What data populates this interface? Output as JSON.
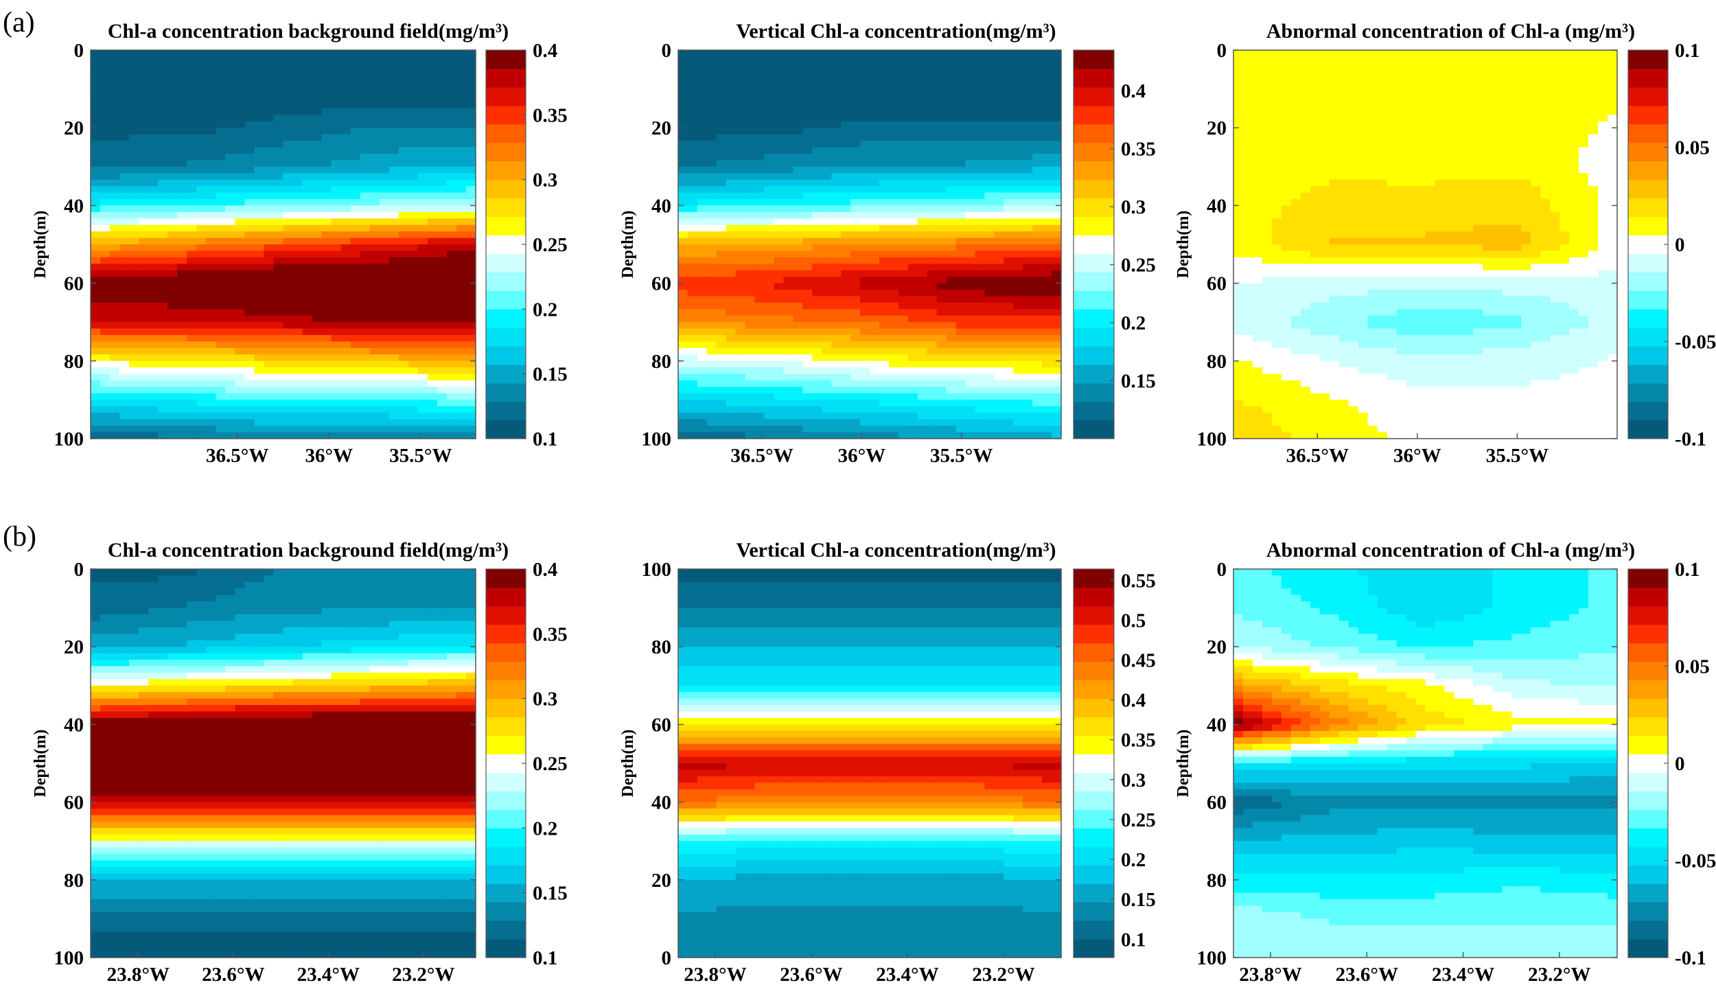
{
  "panel_labels": [
    "(a)",
    "(b)"
  ],
  "colormap": [
    "#055a7a",
    "#056e90",
    "#0587aa",
    "#05a5c8",
    "#00c8e8",
    "#00e0f5",
    "#00f5ff",
    "#60ffff",
    "#a0ffff",
    "#d0ffff",
    "#ffffff",
    "#ffff00",
    "#ffe000",
    "#ffc000",
    "#ffa000",
    "#ff8000",
    "#ff6000",
    "#ff3000",
    "#e01000",
    "#c00000",
    "#800000"
  ],
  "chart_data": [
    {
      "type": "heatmap",
      "title": "Chl-a concentration background field(mg/m³)",
      "ylabel": "Depth(m)",
      "row": "a",
      "xlim": [
        37.3,
        35.2
      ],
      "xticks": [
        36.5,
        36,
        35.5
      ],
      "xtick_labels": [
        "36.5°W",
        "36°W",
        "35.5°W"
      ],
      "ylim": [
        0,
        100
      ],
      "y_reversed": true,
      "yticks": [
        0,
        20,
        40,
        60,
        80,
        100
      ],
      "ytick_labels": [
        "0",
        "20",
        "40",
        "60",
        "80",
        "100"
      ],
      "clim": [
        0.1,
        0.4
      ],
      "cticks": [
        0.1,
        0.15,
        0.2,
        0.25,
        0.3,
        0.35,
        0.4
      ],
      "ctick_labels": [
        "0.1",
        "0.15",
        "0.2",
        "0.25",
        "0.3",
        "0.35",
        "0.4"
      ],
      "depths": [
        0,
        10,
        20,
        30,
        40,
        50,
        60,
        70,
        80,
        90,
        100
      ],
      "z": [
        [
          0.1,
          0.1,
          0.1,
          0.1,
          0.1
        ],
        [
          0.1,
          0.1,
          0.1,
          0.1,
          0.1
        ],
        [
          0.11,
          0.11,
          0.12,
          0.13,
          0.13
        ],
        [
          0.125,
          0.13,
          0.14,
          0.15,
          0.16
        ],
        [
          0.19,
          0.2,
          0.21,
          0.22,
          0.23
        ],
        [
          0.3,
          0.32,
          0.34,
          0.36,
          0.38
        ],
        [
          0.4,
          0.41,
          0.42,
          0.42,
          0.42
        ],
        [
          0.37,
          0.37,
          0.38,
          0.39,
          0.39
        ],
        [
          0.26,
          0.27,
          0.28,
          0.29,
          0.3
        ],
        [
          0.18,
          0.19,
          0.2,
          0.2,
          0.21
        ],
        [
          0.12,
          0.125,
          0.13,
          0.13,
          0.135
        ]
      ]
    },
    {
      "type": "heatmap",
      "title": "Vertical Chl-a concentration(mg/m³)",
      "ylabel": "Depth(m)",
      "row": "a",
      "xlim": [
        36.92,
        35.0
      ],
      "xticks": [
        36.5,
        36,
        35.5
      ],
      "xtick_labels": [
        "36.5°W",
        "36°W",
        "35.5°W"
      ],
      "ylim": [
        0,
        100
      ],
      "y_reversed": true,
      "yticks": [
        0,
        20,
        40,
        60,
        80,
        100
      ],
      "ytick_labels": [
        "0",
        "20",
        "40",
        "60",
        "80",
        "100"
      ],
      "clim": [
        0.1,
        0.435
      ],
      "cticks": [
        0.15,
        0.2,
        0.25,
        0.3,
        0.35,
        0.4
      ],
      "ctick_labels": [
        "0.15",
        "0.2",
        "0.25",
        "0.3",
        "0.35",
        "0.4"
      ],
      "depths": [
        0,
        10,
        20,
        30,
        40,
        50,
        60,
        70,
        80,
        90,
        100
      ],
      "z": [
        [
          0.1,
          0.1,
          0.1,
          0.1,
          0.1
        ],
        [
          0.1,
          0.1,
          0.1,
          0.1,
          0.1
        ],
        [
          0.11,
          0.11,
          0.12,
          0.12,
          0.12
        ],
        [
          0.13,
          0.14,
          0.15,
          0.15,
          0.16
        ],
        [
          0.2,
          0.21,
          0.22,
          0.23,
          0.24
        ],
        [
          0.32,
          0.33,
          0.34,
          0.35,
          0.36
        ],
        [
          0.38,
          0.39,
          0.41,
          0.43,
          0.44
        ],
        [
          0.34,
          0.35,
          0.36,
          0.38,
          0.38
        ],
        [
          0.25,
          0.26,
          0.28,
          0.29,
          0.3
        ],
        [
          0.18,
          0.19,
          0.2,
          0.21,
          0.22
        ],
        [
          0.12,
          0.13,
          0.14,
          0.15,
          0.16
        ]
      ]
    },
    {
      "type": "heatmap",
      "title": "Abnormal concentration of Chl-a (mg/m³)",
      "ylabel": "Depth(m)",
      "row": "a",
      "xlim": [
        36.92,
        35.0
      ],
      "xticks": [
        36.5,
        36,
        35.5
      ],
      "xtick_labels": [
        "36.5°W",
        "36°W",
        "35.5°W"
      ],
      "ylim": [
        0,
        100
      ],
      "y_reversed": true,
      "yticks": [
        0,
        20,
        40,
        60,
        80,
        100
      ],
      "ytick_labels": [
        "0",
        "20",
        "40",
        "60",
        "80",
        "100"
      ],
      "clim": [
        -0.1,
        0.1
      ],
      "cticks": [
        -0.1,
        -0.05,
        0,
        0.05,
        0.1
      ],
      "ctick_labels": [
        "-0.1",
        "-0.05",
        "0",
        "0.05",
        "0.1"
      ],
      "depths": [
        0,
        10,
        20,
        30,
        40,
        50,
        60,
        70,
        80,
        90,
        100
      ],
      "z": [
        [
          0.01,
          0.008,
          0.01,
          0.008,
          0.008
        ],
        [
          0.01,
          0.008,
          0.008,
          0.008,
          0.006
        ],
        [
          0.008,
          0.01,
          0.006,
          0.008,
          0.004
        ],
        [
          0.005,
          0.012,
          0.01,
          0.012,
          0.0
        ],
        [
          0.01,
          0.018,
          0.02,
          0.02,
          0.002
        ],
        [
          0.008,
          0.025,
          0.025,
          0.028,
          0.0
        ],
        [
          -0.005,
          -0.01,
          -0.012,
          -0.01,
          -0.008
        ],
        [
          -0.008,
          -0.02,
          -0.032,
          -0.025,
          -0.01
        ],
        [
          0.006,
          -0.005,
          -0.012,
          -0.008,
          -0.004
        ],
        [
          0.015,
          0.006,
          -0.002,
          -0.003,
          -0.002
        ],
        [
          0.022,
          0.01,
          0.002,
          0.0,
          -0.002
        ]
      ]
    },
    {
      "type": "heatmap",
      "title": "Chl-a concentration background field(mg/m³)",
      "ylabel": "Depth(m)",
      "row": "b",
      "xlim": [
        23.9,
        23.09
      ],
      "xticks": [
        23.8,
        23.6,
        23.4,
        23.2
      ],
      "xtick_labels": [
        "23.8°W",
        "23.6°W",
        "23.4°W",
        "23.2°W"
      ],
      "ylim": [
        0,
        100
      ],
      "y_reversed": true,
      "yticks": [
        0,
        20,
        40,
        60,
        80,
        100
      ],
      "ytick_labels": [
        "0",
        "20",
        "40",
        "60",
        "80",
        "100"
      ],
      "clim": [
        0.1,
        0.4
      ],
      "cticks": [
        0.1,
        0.15,
        0.2,
        0.25,
        0.3,
        0.35,
        0.4
      ],
      "ctick_labels": [
        "0.1",
        "0.15",
        "0.2",
        "0.25",
        "0.3",
        "0.35",
        "0.4"
      ],
      "depths": [
        0,
        10,
        20,
        30,
        40,
        50,
        60,
        70,
        80,
        90,
        100
      ],
      "z": [
        [
          0.11,
          0.11,
          0.13,
          0.14,
          0.14
        ],
        [
          0.12,
          0.13,
          0.14,
          0.14,
          0.14
        ],
        [
          0.15,
          0.16,
          0.17,
          0.18,
          0.19
        ],
        [
          0.26,
          0.27,
          0.28,
          0.29,
          0.3
        ],
        [
          0.4,
          0.41,
          0.42,
          0.42,
          0.42
        ],
        [
          0.42,
          0.43,
          0.43,
          0.43,
          0.42
        ],
        [
          0.38,
          0.38,
          0.38,
          0.38,
          0.38
        ],
        [
          0.25,
          0.25,
          0.25,
          0.25,
          0.25
        ],
        [
          0.16,
          0.16,
          0.16,
          0.16,
          0.16
        ],
        [
          0.12,
          0.12,
          0.12,
          0.12,
          0.12
        ],
        [
          0.1,
          0.1,
          0.1,
          0.1,
          0.1
        ]
      ]
    },
    {
      "type": "heatmap",
      "title": "Vertical Chl-a concentration(mg/m³)",
      "ylabel": "Depth(m)",
      "row": "b",
      "xlim": [
        23.877,
        23.08
      ],
      "xticks": [
        23.8,
        23.6,
        23.4,
        23.2
      ],
      "xtick_labels": [
        "23.8°W",
        "23.6°W",
        "23.4°W",
        "23.2°W"
      ],
      "ylim": [
        0,
        100
      ],
      "y_reversed": false,
      "yticks": [
        0,
        20,
        40,
        60,
        80,
        100
      ],
      "ytick_labels": [
        "0",
        "20",
        "40",
        "60",
        "80",
        "100"
      ],
      "clim": [
        0.077,
        0.564
      ],
      "cticks": [
        0.1,
        0.15,
        0.2,
        0.25,
        0.3,
        0.35,
        0.4,
        0.45,
        0.5,
        0.55
      ],
      "ctick_labels": [
        "0.1",
        "0.15",
        "0.2",
        "0.25",
        "0.3",
        "0.35",
        "0.4",
        "0.45",
        "0.5",
        "0.55"
      ],
      "depths": [
        0,
        10,
        20,
        30,
        40,
        50,
        60,
        70,
        80,
        90,
        100
      ],
      "z": [
        [
          0.13,
          0.13,
          0.13,
          0.13,
          0.13
        ],
        [
          0.14,
          0.14,
          0.14,
          0.14,
          0.14
        ],
        [
          0.17,
          0.16,
          0.16,
          0.16,
          0.17
        ],
        [
          0.24,
          0.23,
          0.23,
          0.23,
          0.24
        ],
        [
          0.45,
          0.43,
          0.43,
          0.43,
          0.45
        ],
        [
          0.53,
          0.52,
          0.52,
          0.52,
          0.53
        ],
        [
          0.35,
          0.35,
          0.35,
          0.35,
          0.35
        ],
        [
          0.22,
          0.22,
          0.22,
          0.22,
          0.22
        ],
        [
          0.17,
          0.17,
          0.17,
          0.17,
          0.17
        ],
        [
          0.12,
          0.12,
          0.12,
          0.12,
          0.12
        ],
        [
          0.09,
          0.09,
          0.09,
          0.09,
          0.09
        ]
      ]
    },
    {
      "type": "heatmap",
      "title": "Abnormal concentration of Chl-a (mg/m³)",
      "ylabel": "Depth(m)",
      "row": "b",
      "xlim": [
        23.877,
        23.08
      ],
      "xticks": [
        23.8,
        23.6,
        23.4,
        23.2
      ],
      "xtick_labels": [
        "23.8°W",
        "23.6°W",
        "23.4°W",
        "23.2°W"
      ],
      "ylim": [
        0,
        100
      ],
      "y_reversed": true,
      "yticks": [
        0,
        20,
        40,
        60,
        80,
        100
      ],
      "ytick_labels": [
        "0",
        "20",
        "40",
        "60",
        "80",
        "100"
      ],
      "clim": [
        -0.1,
        0.1
      ],
      "cticks": [
        -0.1,
        -0.05,
        0,
        0.05,
        0.1
      ],
      "ctick_labels": [
        "-0.1",
        "-0.05",
        "0",
        "0.05",
        "0.1"
      ],
      "depths": [
        0,
        10,
        20,
        30,
        40,
        50,
        60,
        70,
        80,
        90,
        100
      ],
      "z": [
        [
          -0.03,
          -0.04,
          -0.05,
          -0.04,
          -0.03
        ],
        [
          -0.025,
          -0.035,
          -0.05,
          -0.04,
          -0.03
        ],
        [
          -0.015,
          -0.025,
          -0.035,
          -0.03,
          -0.025
        ],
        [
          0.04,
          0.02,
          0.008,
          -0.012,
          -0.015
        ],
        [
          0.1,
          0.05,
          0.02,
          0.008,
          0.008
        ],
        [
          -0.04,
          -0.045,
          -0.05,
          -0.05,
          -0.055
        ],
        [
          -0.09,
          -0.075,
          -0.075,
          -0.075,
          -0.075
        ],
        [
          -0.06,
          -0.06,
          -0.055,
          -0.06,
          -0.06
        ],
        [
          -0.04,
          -0.04,
          -0.04,
          -0.035,
          -0.04
        ],
        [
          -0.015,
          -0.025,
          -0.025,
          -0.025,
          -0.025
        ],
        [
          -0.015,
          -0.015,
          -0.015,
          -0.015,
          -0.015
        ]
      ]
    }
  ]
}
